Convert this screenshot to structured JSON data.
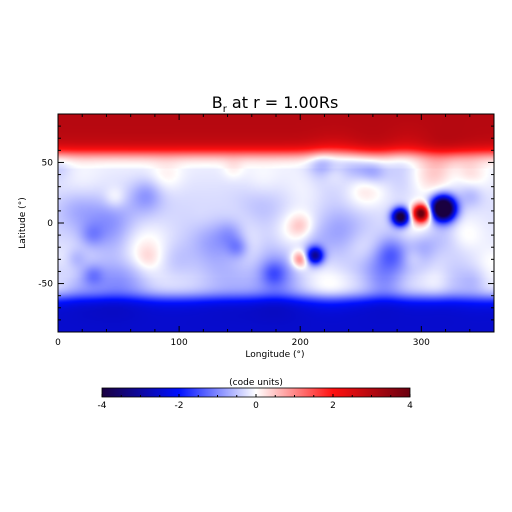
{
  "chart_data": {
    "type": "heatmap",
    "title": "B",
    "title_subscript": "r",
    "title_suffix": " at r = 1.00Rs",
    "xlabel": "Longitude (°)",
    "ylabel": "Latitude (°)",
    "xlim": [
      0,
      360
    ],
    "ylim": [
      -90,
      90
    ],
    "xticks": [
      0,
      100,
      200,
      300
    ],
    "yticks": [
      -50,
      0,
      50
    ],
    "colorbar": {
      "label": "(code units)",
      "range": [
        -4,
        4
      ],
      "ticks": [
        -4,
        -2,
        0,
        2,
        4
      ],
      "colors": [
        "#1a0040",
        "#0010ff",
        "#ffffff",
        "#ff1010",
        "#6a0010"
      ]
    },
    "features": [
      {
        "kind": "polar_cap",
        "lat_from": 60,
        "lat_to": 90,
        "value": 3.0
      },
      {
        "kind": "polar_cap",
        "lat_from": -90,
        "lat_to": -60,
        "value": -2.5
      },
      {
        "kind": "spot",
        "lon": 283,
        "lat": 5,
        "value": -3.0
      },
      {
        "kind": "spot",
        "lon": 300,
        "lat": 8,
        "value": 3.2
      },
      {
        "kind": "spot",
        "lon": 318,
        "lat": 12,
        "value": -4.0
      },
      {
        "kind": "spot",
        "lon": 212,
        "lat": -27,
        "value": -2.0
      },
      {
        "kind": "spot",
        "lon": 200,
        "lat": -30,
        "value": 1.0
      }
    ]
  }
}
